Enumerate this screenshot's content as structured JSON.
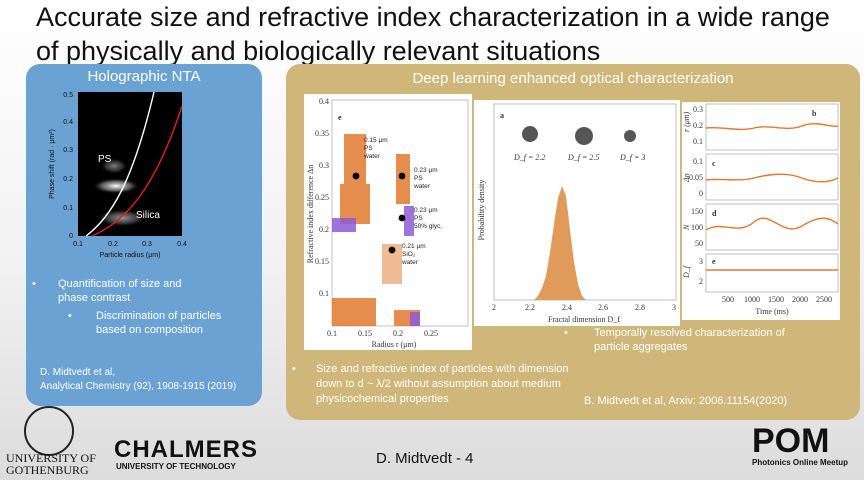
{
  "title": "Accurate size and refractive index characterization in a wide range of physically and biologically relevant situations",
  "left_panel": {
    "heading": "Holographic NTA",
    "plot": {
      "ylabel": "Phase shift (rad · μm²)",
      "xlabel": "Particle radius (μm)",
      "xticks": [
        "0.1",
        "0.2",
        "0.3",
        "0.4"
      ],
      "yticks": [
        "0",
        "0.1",
        "0.2",
        "0.3",
        "0.4",
        "0.5"
      ],
      "label_ps": "PS",
      "label_silica": "Silica"
    },
    "bullet1": "Quantification of size and phase contrast",
    "bullet2": "Discrimination of particles based on composition",
    "citation_line1": "D. Midtvedt et al,",
    "citation_line2": "Analytical Chemistry (92), 1908-1915 (2019)"
  },
  "right_panel": {
    "heading": "Deep learning enhanced optical characterization",
    "fig_e": {
      "panel_label": "e",
      "ylabel": "Refractive index difference Δn",
      "xlabel": "Radius r (μm)",
      "xticks": [
        "0.1",
        "0.15",
        "0.2",
        "0.25"
      ],
      "yticks": [
        "0.1",
        "0.15",
        "0.2",
        "0.25",
        "0.3",
        "0.35",
        "0.4"
      ],
      "ann1": [
        "0.15 μm",
        "PS",
        "water"
      ],
      "ann2": [
        "0.23 μm",
        "PS",
        "water"
      ],
      "ann3": [
        "0.23 μm",
        "PS",
        "50% glyc."
      ],
      "ann4": [
        "0.21 μm",
        "SiO₂",
        "water"
      ]
    },
    "fig_a": {
      "panel_label": "a",
      "ylabel": "Probability density",
      "xlabel": "Fractal dimension D_f",
      "xticks": [
        "2",
        "2.2",
        "2.4",
        "2.6",
        "2.8",
        "3"
      ],
      "labels": [
        "D_f = 2.2",
        "D_f = 2.5",
        "D_f = 3"
      ]
    },
    "fig_bcde": {
      "labels": [
        "b",
        "c",
        "d",
        "e"
      ],
      "ylabels": [
        "r (μm)",
        "Δn",
        "N",
        "D_f"
      ],
      "b_ticks": [
        "0.3",
        "0.2",
        "0.1"
      ],
      "c_ticks": [
        "0.1",
        "0.05",
        "0"
      ],
      "d_ticks": [
        "150",
        "100",
        "50"
      ],
      "e_ticks": [
        "3",
        "2"
      ],
      "xticks": [
        "500",
        "1000",
        "1500",
        "2000",
        "2500"
      ],
      "xlabel": "Time (ms)"
    },
    "bullet_left": "Size and refractive index of particles with dimension down to d ~ λ/2 without assumption about medium physicochemical properties",
    "bullet_right": "Temporally resolved characterization of particle aggregates",
    "citation": "B. Midtvedt et al, Arxiv: 2006.11154(2020)"
  },
  "footer": {
    "speaker": "D. Midtvedt  - 4",
    "gu_line1": "UNIVERSITY OF",
    "gu_line2": "GOTHENBURG",
    "chalmers": "CHALMERS",
    "chalmers_sub": "UNIVERSITY OF TECHNOLOGY",
    "pom": "POM",
    "pom_sub": "Photonics Online Meetup"
  },
  "colors": {
    "left_panel": "#6aa2d3",
    "right_panel": "#cfb77a",
    "orange": "#e07a2e",
    "purple": "#8e5ad6"
  }
}
